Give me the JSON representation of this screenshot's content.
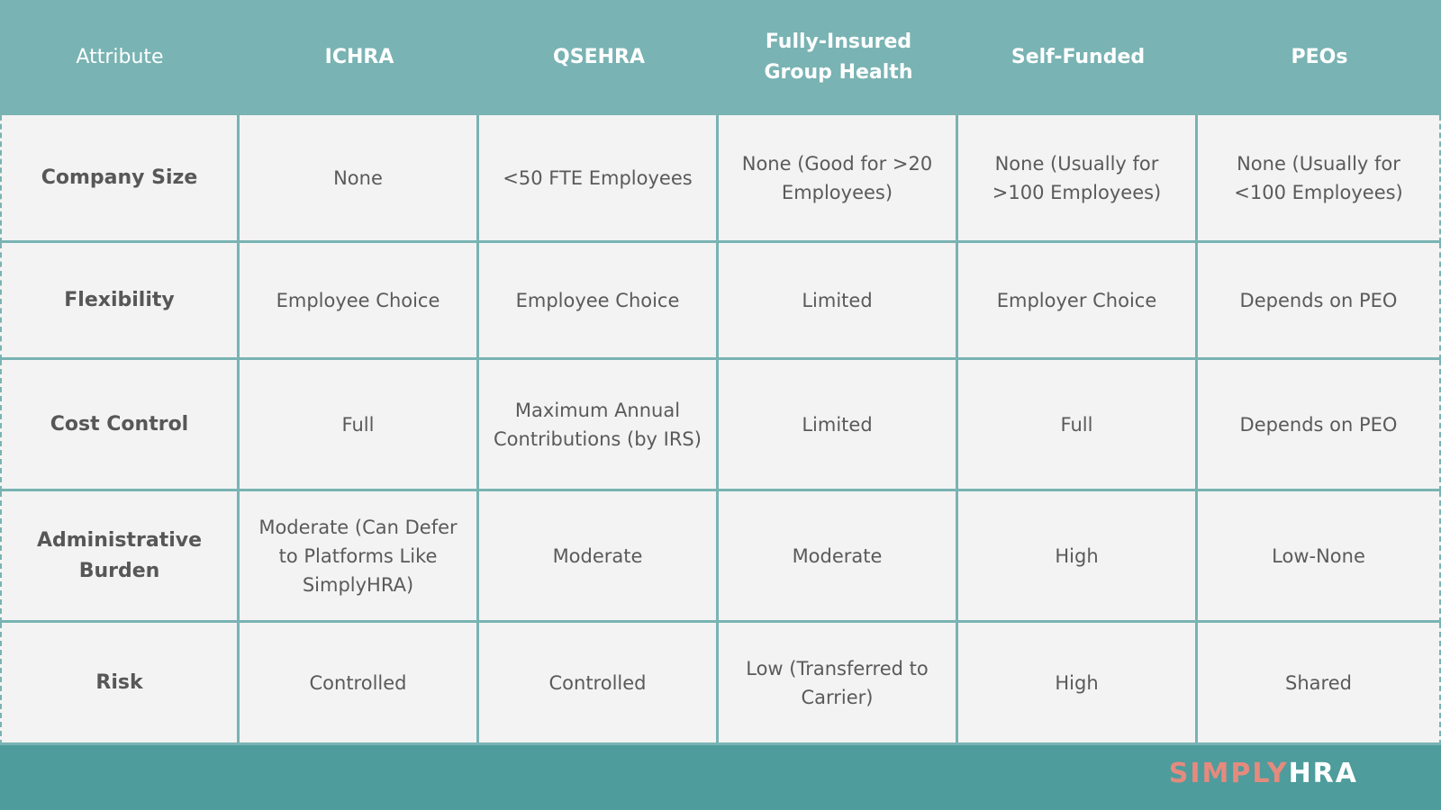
{
  "headers": [
    "Attribute",
    "ICHRA",
    "QSEHRA",
    "Fully-Insured Group Health",
    "Self-Funded",
    "PEOs"
  ],
  "rows": [
    {
      "label": "Company Size",
      "cells": [
        "None",
        "<50 FTE Employees",
        "None (Good for >20 Employees)",
        "None (Usually for >100 Employees)",
        "None (Usually for <100 Employees)"
      ]
    },
    {
      "label": "Flexibility",
      "cells": [
        "Employee Choice",
        "Employee Choice",
        "Limited",
        "Employer Choice",
        "Depends on PEO"
      ]
    },
    {
      "label": "Cost Control",
      "cells": [
        "Full",
        "Maximum Annual Contributions (by IRS)",
        "Limited",
        "Full",
        "Depends on PEO"
      ]
    },
    {
      "label": "Administrative Burden",
      "cells": [
        "Moderate (Can Defer to Platforms Like SimplyHRA)",
        "Moderate",
        "Moderate",
        "High",
        "Low-None"
      ]
    },
    {
      "label": "Risk",
      "cells": [
        "Controlled",
        "Controlled",
        "Low (Transferred to Carrier)",
        "High",
        "Shared"
      ]
    }
  ],
  "brand": {
    "part1": "SIMPLY",
    "part2": "HRA",
    "accent_color": "#e58a7e",
    "header_color": "#79b3b3",
    "footer_color": "#4e9c9c"
  }
}
